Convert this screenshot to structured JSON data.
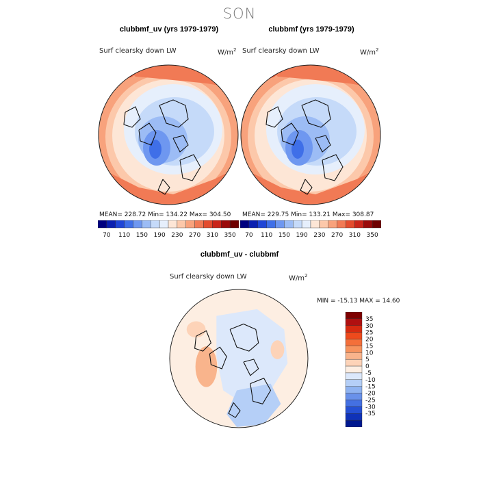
{
  "figure": {
    "season": "SON",
    "panels": [
      {
        "title": "clubbmf_uv (yrs 1979-1979)",
        "variable_label": "Surf clearsky down LW",
        "units": "W/m",
        "units_exp": "2",
        "stats_text": "MEAN= 228.72   Min= 134.22   Max= 304.50"
      },
      {
        "title": "clubbmf (yrs 1979-1979)",
        "variable_label": "Surf clearsky down LW",
        "units": "W/m",
        "units_exp": "2",
        "stats_text": "MEAN= 229.75   Min= 133.21   Max= 308.87"
      },
      {
        "title": "clubbmf_uv - clubbmf",
        "variable_label": "Surf clearsky down LW",
        "units": "W/m",
        "units_exp": "2",
        "stats_text": "MIN = -15.13 MAX =  14.60"
      }
    ]
  },
  "chart_data": [
    {
      "type": "heatmap",
      "projection": "polar-stereographic-north",
      "title": "clubbmf_uv (yrs 1979-1979)",
      "variable": "Surf clearsky down LW",
      "units": "W/m^2",
      "mean": 228.72,
      "min": 134.22,
      "max": 304.5,
      "colorbar_levels": [
        70,
        110,
        150,
        190,
        230,
        270,
        310,
        350
      ],
      "colorbar_colors": [
        "#00007f",
        "#0a1fb0",
        "#1f45d6",
        "#3f6fe8",
        "#6e97f0",
        "#9cbcf5",
        "#c5daf9",
        "#e6effc",
        "#fde6d6",
        "#fcc8aa",
        "#f8a27c",
        "#f17a55",
        "#e34c2e",
        "#c9251a",
        "#9a0a0a",
        "#6e0000"
      ]
    },
    {
      "type": "heatmap",
      "projection": "polar-stereographic-north",
      "title": "clubbmf (yrs 1979-1979)",
      "variable": "Surf clearsky down LW",
      "units": "W/m^2",
      "mean": 229.75,
      "min": 133.21,
      "max": 308.87,
      "colorbar_levels": [
        70,
        110,
        150,
        190,
        230,
        270,
        310,
        350
      ],
      "colorbar_colors": [
        "#00007f",
        "#0a1fb0",
        "#1f45d6",
        "#3f6fe8",
        "#6e97f0",
        "#9cbcf5",
        "#c5daf9",
        "#e6effc",
        "#fde6d6",
        "#fcc8aa",
        "#f8a27c",
        "#f17a55",
        "#e34c2e",
        "#c9251a",
        "#9a0a0a",
        "#6e0000"
      ]
    },
    {
      "type": "heatmap",
      "projection": "polar-stereographic-north",
      "title": "clubbmf_uv - clubbmf",
      "variable": "Surf clearsky down LW",
      "units": "W/m^2",
      "min": -15.13,
      "max": 14.6,
      "colorbar_levels": [
        35,
        30,
        25,
        20,
        15,
        10,
        5,
        0,
        -5,
        -10,
        -15,
        -20,
        -25,
        -30,
        -35
      ],
      "colorbar_colors": [
        "#7e0000",
        "#b01010",
        "#d62a10",
        "#ee4a1c",
        "#f46f3a",
        "#f7935e",
        "#f9b48c",
        "#fdd3b8",
        "#fdeee2",
        "#dce8fb",
        "#b5cff7",
        "#8fb3f1",
        "#6991ea",
        "#4470e2",
        "#2550d4",
        "#0f32b8",
        "#00188f"
      ]
    }
  ]
}
